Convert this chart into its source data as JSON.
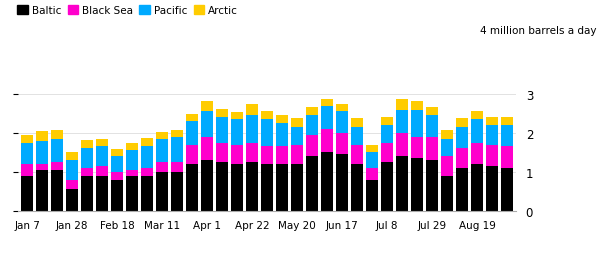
{
  "baltic": [
    0.9,
    1.05,
    1.05,
    0.55,
    0.9,
    0.9,
    0.8,
    0.9,
    0.9,
    1.0,
    1.0,
    1.2,
    1.3,
    1.25,
    1.2,
    1.25,
    1.2,
    1.2,
    1.2,
    1.4,
    1.5,
    1.45,
    1.2,
    0.8,
    1.25,
    1.4,
    1.35,
    1.3,
    0.9,
    1.1,
    1.2,
    1.15,
    1.1
  ],
  "black_sea": [
    0.3,
    0.15,
    0.2,
    0.25,
    0.2,
    0.25,
    0.2,
    0.15,
    0.2,
    0.25,
    0.25,
    0.5,
    0.6,
    0.5,
    0.5,
    0.5,
    0.45,
    0.45,
    0.5,
    0.55,
    0.6,
    0.55,
    0.5,
    0.3,
    0.5,
    0.6,
    0.55,
    0.6,
    0.5,
    0.5,
    0.55,
    0.55,
    0.55
  ],
  "pacific": [
    0.55,
    0.6,
    0.6,
    0.5,
    0.5,
    0.5,
    0.4,
    0.5,
    0.55,
    0.6,
    0.65,
    0.6,
    0.65,
    0.65,
    0.65,
    0.7,
    0.7,
    0.6,
    0.45,
    0.5,
    0.6,
    0.55,
    0.45,
    0.4,
    0.45,
    0.6,
    0.7,
    0.55,
    0.45,
    0.55,
    0.6,
    0.5,
    0.55
  ],
  "arctic": [
    0.2,
    0.25,
    0.22,
    0.22,
    0.22,
    0.18,
    0.18,
    0.18,
    0.22,
    0.18,
    0.18,
    0.18,
    0.28,
    0.22,
    0.18,
    0.28,
    0.22,
    0.22,
    0.22,
    0.22,
    0.18,
    0.18,
    0.22,
    0.18,
    0.22,
    0.28,
    0.22,
    0.22,
    0.22,
    0.22,
    0.22,
    0.22,
    0.22
  ],
  "tick_labels": [
    "Jan 7",
    "Jan 28",
    "Feb 18",
    "Mar 11",
    "Apr 1",
    "Apr 22",
    "May 20",
    "Jun 17",
    "Jul 8",
    "Jul 29",
    "Aug 19"
  ],
  "tick_positions": [
    0,
    3,
    6,
    9,
    12,
    15,
    18,
    21,
    24,
    27,
    30
  ],
  "colors": {
    "baltic": "#000000",
    "black_sea": "#ff00cc",
    "pacific": "#00aaff",
    "arctic": "#ffcc00"
  },
  "ylim": [
    0,
    4
  ],
  "yticks": [
    0,
    1,
    2,
    3
  ],
  "ylabel_right": "4 million barrels a day",
  "background_color": "#ffffff",
  "bar_width": 0.8
}
